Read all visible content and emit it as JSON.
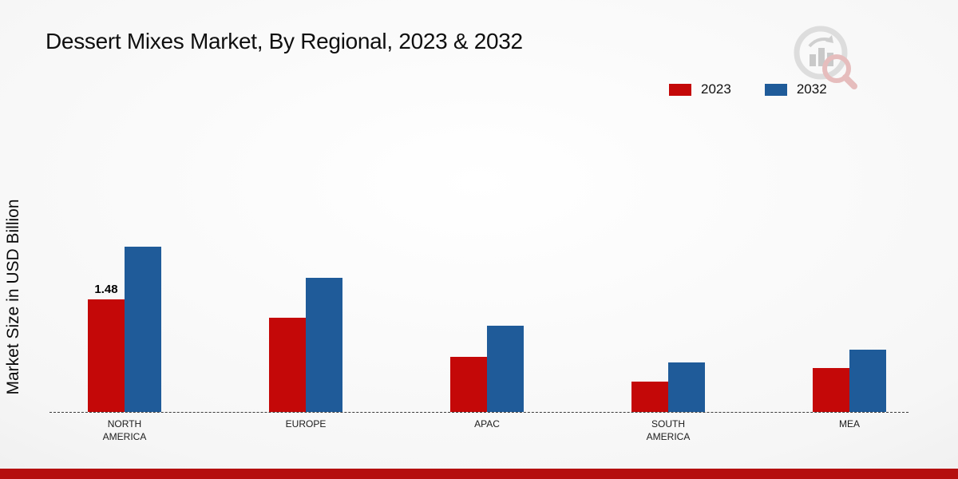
{
  "title": "Dessert Mixes Market, By Regional, 2023 & 2032",
  "y_axis_label": "Market Size in USD Billion",
  "legend": {
    "items": [
      {
        "label": "2023",
        "color": "#c40808"
      },
      {
        "label": "2032",
        "color": "#1f5b99"
      }
    ],
    "position": "top-right"
  },
  "chart_data": {
    "type": "bar",
    "title": "Dessert Mixes Market, By Regional, 2023 & 2032",
    "xlabel": "",
    "ylabel": "Market Size in USD Billion",
    "categories": [
      "NORTH AMERICA",
      "EUROPE",
      "APAC",
      "SOUTH AMERICA",
      "MEA"
    ],
    "series": [
      {
        "name": "2023",
        "color": "#c40808",
        "values": [
          1.48,
          1.24,
          0.73,
          0.4,
          0.58
        ]
      },
      {
        "name": "2032",
        "color": "#1f5b99",
        "values": [
          2.18,
          1.77,
          1.14,
          0.65,
          0.82
        ]
      }
    ],
    "data_labels": [
      {
        "series": "2023",
        "category": "NORTH AMERICA",
        "text": "1.48"
      }
    ],
    "ylim": [
      0,
      2.6
    ],
    "grid": false,
    "axis_line_style": "dashed",
    "legend_position": "top-right"
  },
  "branding": {
    "logo": "market-research-bar-chart-magnifier-logo"
  },
  "footer": {
    "bar_color": "#b50f0f"
  }
}
